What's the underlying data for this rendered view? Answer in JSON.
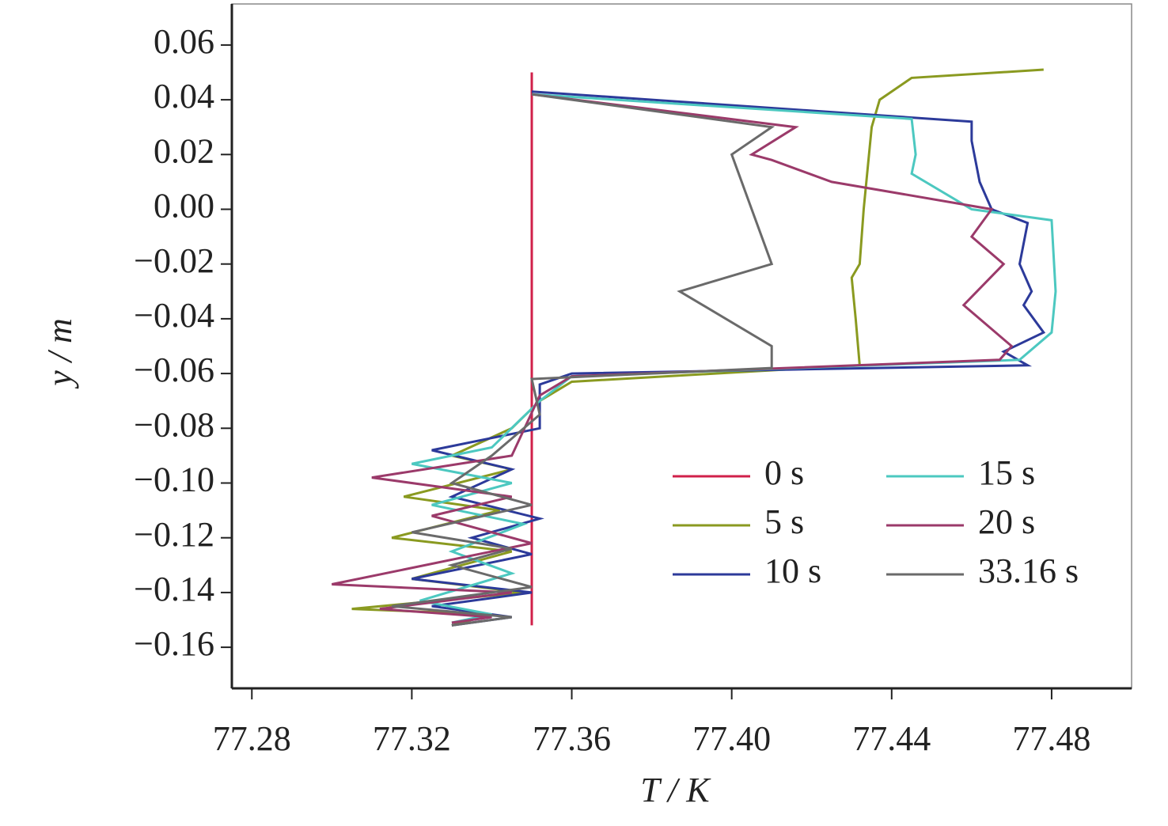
{
  "chart_data": {
    "type": "line",
    "x_label": "T / K",
    "y_label": "y / m",
    "xlim": [
      77.275,
      77.5
    ],
    "ylim": [
      -0.175,
      0.075
    ],
    "xticks": [
      77.28,
      77.32,
      77.36,
      {
        "value": 77.4,
        "label": "77.40"
      },
      77.44,
      77.48
    ],
    "yticks": [
      {
        "value": 0.06,
        "label": "0.06"
      },
      {
        "value": 0.04,
        "label": "0.04"
      },
      {
        "value": 0.02,
        "label": "0.02"
      },
      {
        "value": 0,
        "label": "0.00"
      },
      {
        "value": -0.02,
        "label": "−0.02"
      },
      {
        "value": -0.04,
        "label": "−0.04"
      },
      {
        "value": -0.06,
        "label": "−0.06"
      },
      {
        "value": -0.08,
        "label": "−0.08"
      },
      {
        "value": -0.1,
        "label": "−0.10"
      },
      {
        "value": -0.12,
        "label": "−0.12"
      },
      {
        "value": -0.14,
        "label": "−0.14"
      },
      {
        "value": -0.16,
        "label": "−0.16"
      }
    ],
    "series": [
      {
        "name": "0 s",
        "color": "#d0204a",
        "x": [
          77.35,
          77.35
        ],
        "values": [
          0.05,
          -0.152
        ]
      },
      {
        "name": "5 s",
        "color": "#8a9a20",
        "x": [
          77.478,
          77.445,
          77.437,
          77.435,
          77.433,
          77.432,
          77.43,
          77.431,
          77.432,
          77.36,
          77.352,
          77.345,
          77.33,
          77.345,
          77.318,
          77.342,
          77.315,
          77.345,
          77.32,
          77.348,
          77.305,
          77.34,
          77.33
        ],
        "values": [
          0.051,
          0.048,
          0.04,
          0.03,
          0.0,
          -0.02,
          -0.025,
          -0.04,
          -0.057,
          -0.063,
          -0.07,
          -0.08,
          -0.09,
          -0.095,
          -0.105,
          -0.11,
          -0.12,
          -0.125,
          -0.135,
          -0.14,
          -0.146,
          -0.148,
          -0.152
        ]
      },
      {
        "name": "10 s",
        "color": "#2c3a9a",
        "x": [
          77.35,
          77.46,
          77.46,
          77.462,
          77.465,
          77.474,
          77.472,
          77.475,
          77.473,
          77.478,
          77.468,
          77.474,
          77.36,
          77.352,
          77.352,
          77.325,
          77.345,
          77.33,
          77.352,
          77.335,
          77.35,
          77.32,
          77.35,
          77.325,
          77.345,
          77.33
        ],
        "values": [
          0.043,
          0.032,
          0.025,
          0.01,
          0.0,
          -0.005,
          -0.02,
          -0.03,
          -0.035,
          -0.045,
          -0.052,
          -0.057,
          -0.06,
          -0.064,
          -0.08,
          -0.088,
          -0.095,
          -0.105,
          -0.113,
          -0.12,
          -0.126,
          -0.135,
          -0.14,
          -0.145,
          -0.149,
          -0.152
        ]
      },
      {
        "name": "15 s",
        "color": "#4cc8c0",
        "x": [
          77.35,
          77.445,
          77.446,
          77.445,
          77.46,
          77.48,
          77.481,
          77.48,
          77.472,
          77.36,
          77.352,
          77.34,
          77.32,
          77.345,
          77.325,
          77.348,
          77.33,
          77.345,
          77.322,
          77.34,
          77.33
        ],
        "values": [
          0.042,
          0.033,
          0.02,
          0.013,
          0.0,
          -0.004,
          -0.03,
          -0.045,
          -0.055,
          -0.061,
          -0.07,
          -0.087,
          -0.093,
          -0.1,
          -0.108,
          -0.115,
          -0.125,
          -0.133,
          -0.143,
          -0.148,
          -0.151
        ]
      },
      {
        "name": "20 s",
        "color": "#9b3a6a",
        "x": [
          77.35,
          77.416,
          77.405,
          77.41,
          77.425,
          77.465,
          77.46,
          77.468,
          77.458,
          77.47,
          77.467,
          77.36,
          77.352,
          77.345,
          77.31,
          77.345,
          77.325,
          77.35,
          77.3,
          77.345,
          77.312,
          77.34,
          77.33
        ],
        "values": [
          0.042,
          0.03,
          0.02,
          0.018,
          0.01,
          0.0,
          -0.01,
          -0.02,
          -0.035,
          -0.05,
          -0.055,
          -0.061,
          -0.068,
          -0.09,
          -0.098,
          -0.105,
          -0.112,
          -0.122,
          -0.137,
          -0.14,
          -0.146,
          -0.149,
          -0.151
        ]
      },
      {
        "name": "33.16 s",
        "color": "#6a6a6a",
        "x": [
          77.35,
          77.41,
          77.4,
          77.405,
          77.41,
          77.387,
          77.41,
          77.41,
          77.35,
          77.352,
          77.34,
          77.33,
          77.35,
          77.32,
          77.345,
          77.33,
          77.35,
          77.315,
          77.345,
          77.33
        ],
        "values": [
          0.042,
          0.03,
          0.02,
          0.0,
          -0.02,
          -0.03,
          -0.05,
          -0.058,
          -0.062,
          -0.075,
          -0.09,
          -0.1,
          -0.108,
          -0.118,
          -0.124,
          -0.13,
          -0.138,
          -0.145,
          -0.149,
          -0.152
        ]
      }
    ]
  }
}
